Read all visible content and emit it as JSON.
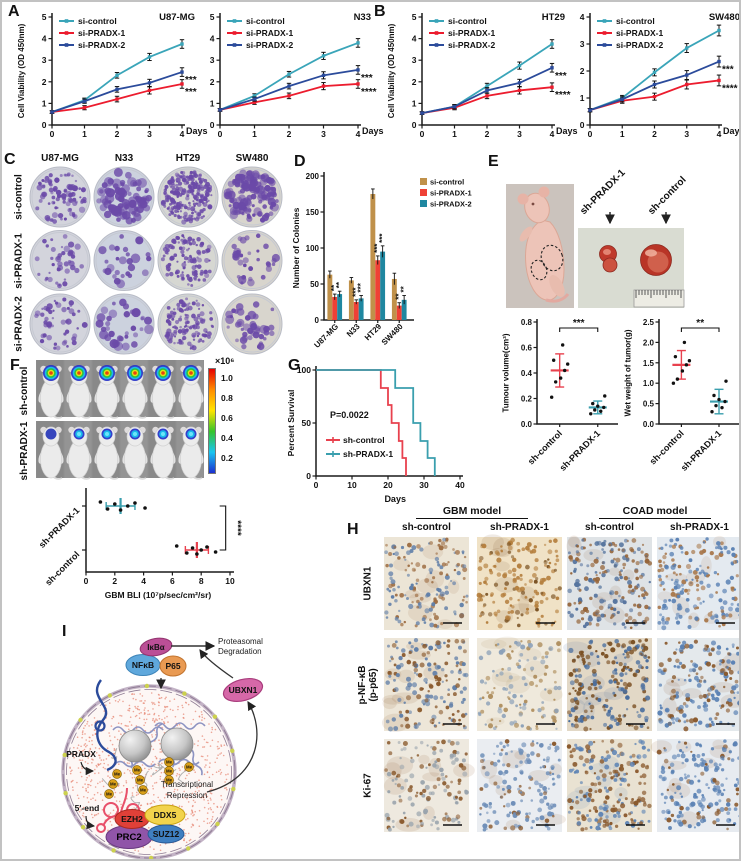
{
  "panel_labels": {
    "A": "A",
    "B": "B",
    "C": "C",
    "D": "D",
    "E": "E",
    "F": "F",
    "G": "G",
    "H": "H",
    "I": "I"
  },
  "colors": {
    "si_control": "#3aa5b9",
    "si_pradx1": "#ec1c2e",
    "si_pradx2": "#2b4b9b",
    "bar_control": "#c0914a",
    "bar_pradx1": "#ef4136",
    "bar_pradx2": "#1f87a0",
    "sh_control": "#e8414e",
    "sh_pradx1": "#3a9fae",
    "colony": "#6b4aa8",
    "point": "#111111"
  },
  "panelC": {
    "columns": [
      "U87-MG",
      "N33",
      "HT29",
      "SW480"
    ],
    "rows": [
      "si-control",
      "si-PRADX-1",
      "si-PRADX-2"
    ],
    "counts": [
      [
        90,
        75,
        230,
        120
      ],
      [
        40,
        26,
        110,
        34
      ],
      [
        48,
        34,
        130,
        42
      ]
    ],
    "sizes": [
      [
        1.0,
        3.2
      ],
      [
        1.8,
        5.0
      ],
      [
        1.0,
        2.6
      ],
      [
        1.5,
        4.5
      ]
    ],
    "dish_bg": [
      "#d3d4dc",
      "#ccd2de",
      "#d6d7d2",
      "#d8d5cd"
    ]
  },
  "panelE": {
    "tumor_labels": [
      "sh-PRADX-1",
      "sh-control"
    ]
  },
  "panelF": {
    "row_labels": [
      "sh-control",
      "sh-PRADX-1"
    ],
    "scale_title": "×10⁶",
    "scale_ticks": [
      "1.0",
      "0.8",
      "0.6",
      "0.4",
      "0.2"
    ]
  },
  "panelH": {
    "group_headers": [
      "GBM model",
      "COAD model"
    ],
    "col_labels": [
      "sh-control",
      "sh-PRADX-1",
      "sh-control",
      "sh-PRADX-1"
    ],
    "row_labels": [
      [
        "UBXN1"
      ],
      [
        "p-NF-κB",
        "(p-p65)"
      ],
      [
        "Ki-67"
      ]
    ],
    "tiles": [
      {
        "row": 0,
        "col": 0,
        "bg": "#ece5d6",
        "c1": "#5f7ea8",
        "c2": "#9c6b40",
        "ratio": 0.5,
        "n": 150
      },
      {
        "row": 0,
        "col": 1,
        "bg": "#f0e2c6",
        "c1": "#b5803f",
        "c2": "#7d5526",
        "ratio": 0.7,
        "n": 160
      },
      {
        "row": 0,
        "col": 2,
        "bg": "#dfe3e6",
        "c1": "#56749e",
        "c2": "#96653a",
        "ratio": 0.5,
        "n": 200
      },
      {
        "row": 0,
        "col": 3,
        "bg": "#e4eaf0",
        "c1": "#5b82b4",
        "c2": "#a8774a",
        "ratio": 0.6,
        "n": 180
      },
      {
        "row": 1,
        "col": 0,
        "bg": "#ede6d8",
        "c1": "#5f7ea8",
        "c2": "#8a5a2e",
        "ratio": 0.55,
        "n": 170
      },
      {
        "row": 1,
        "col": 1,
        "bg": "#efe9dc",
        "c1": "#8ba0b8",
        "c2": "#b09060",
        "ratio": 0.5,
        "n": 120
      },
      {
        "row": 1,
        "col": 2,
        "bg": "#e2d8c6",
        "c1": "#7a4f22",
        "c2": "#4a6e9e",
        "ratio": 0.55,
        "n": 210
      },
      {
        "row": 1,
        "col": 3,
        "bg": "#e4e9ec",
        "c1": "#5b82b4",
        "c2": "#8a5a2e",
        "ratio": 0.55,
        "n": 180
      },
      {
        "row": 2,
        "col": 0,
        "bg": "#eee9df",
        "c1": "#9aa4ad",
        "c2": "#8a5a2e",
        "ratio": 0.6,
        "n": 130
      },
      {
        "row": 2,
        "col": 1,
        "bg": "#eaedf1",
        "c1": "#6f8fb8",
        "c2": "#8a5a2e",
        "ratio": 0.75,
        "n": 150
      },
      {
        "row": 2,
        "col": 2,
        "bg": "#e9e2d2",
        "c1": "#8a5a2e",
        "c2": "#5b82b4",
        "ratio": 0.6,
        "n": 200
      },
      {
        "row": 2,
        "col": 3,
        "bg": "#e7ebf0",
        "c1": "#5b82b4",
        "c2": "#8a5a2e",
        "ratio": 0.8,
        "n": 170
      }
    ]
  },
  "panelI": {
    "labels": {
      "ikba": "IκBα",
      "nfkb": "NFκB",
      "p65": "P65",
      "prot_deg_1": "Proteasomal",
      "prot_deg_2": "Degradation",
      "ubxn1": "UBXN1",
      "pradx": "PRADX",
      "me": "Me",
      "tr_1": "Transcriptional",
      "tr_2": "Repression",
      "five_end": "5'-end",
      "ezh2": "EZH2",
      "ddx5": "DDX5",
      "prc2": "PRC2",
      "suz12": "SUZ12"
    }
  },
  "chart_data": [
    {
      "id": "u87",
      "type": "line",
      "title": "U87-MG",
      "ylabel": "Cell Viability (OD 450nm)",
      "xlabel": "Days",
      "x": [
        0,
        1,
        2,
        3,
        4
      ],
      "ylim": [
        0,
        5
      ],
      "yticks": [
        0,
        1,
        2,
        3,
        4,
        5
      ],
      "series": [
        {
          "name": "si-control",
          "color": "si_control",
          "values": [
            0.6,
            1.15,
            2.3,
            3.15,
            3.75
          ]
        },
        {
          "name": "si-PRADX-1",
          "color": "si_pradx1",
          "values": [
            0.6,
            0.8,
            1.2,
            1.6,
            1.9
          ],
          "sig": "***"
        },
        {
          "name": "si-PRADX-2",
          "color": "si_pradx2",
          "values": [
            0.6,
            1.1,
            1.65,
            1.95,
            2.45
          ],
          "sig": "***"
        }
      ]
    },
    {
      "id": "n33",
      "type": "line",
      "title": "N33",
      "xlabel": "Days",
      "x": [
        0,
        1,
        2,
        3,
        4
      ],
      "ylim": [
        0,
        5
      ],
      "yticks": [
        0,
        1,
        2,
        3,
        4,
        5
      ],
      "series": [
        {
          "name": "si-control",
          "color": "si_control",
          "values": [
            0.7,
            1.35,
            2.35,
            3.2,
            3.8
          ]
        },
        {
          "name": "si-PRADX-1",
          "color": "si_pradx1",
          "values": [
            0.7,
            1.05,
            1.35,
            1.8,
            1.9
          ],
          "sig": "****"
        },
        {
          "name": "si-PRADX-2",
          "color": "si_pradx2",
          "values": [
            0.7,
            1.2,
            1.8,
            2.3,
            2.55
          ],
          "sig": "***"
        }
      ]
    },
    {
      "id": "ht29",
      "type": "line",
      "title": "HT29",
      "ylabel": "Cell Viability (OD 450nm)",
      "xlabel": "Days",
      "x": [
        0,
        1,
        2,
        3,
        4
      ],
      "ylim": [
        0,
        5
      ],
      "yticks": [
        0,
        1,
        2,
        3,
        4,
        5
      ],
      "series": [
        {
          "name": "si-control",
          "color": "si_control",
          "values": [
            0.55,
            0.85,
            1.8,
            2.75,
            3.75
          ]
        },
        {
          "name": "si-PRADX-1",
          "color": "si_pradx1",
          "values": [
            0.55,
            0.8,
            1.35,
            1.6,
            1.75
          ],
          "sig": "****"
        },
        {
          "name": "si-PRADX-2",
          "color": "si_pradx2",
          "values": [
            0.55,
            0.85,
            1.6,
            1.95,
            2.65
          ],
          "sig": "***"
        }
      ]
    },
    {
      "id": "sw480",
      "type": "line",
      "title": "SW480",
      "xlabel": "Days",
      "x": [
        0,
        1,
        2,
        3,
        4
      ],
      "ylim": [
        0,
        4
      ],
      "yticks": [
        0,
        1,
        2,
        3,
        4
      ],
      "series": [
        {
          "name": "si-control",
          "color": "si_control",
          "values": [
            0.55,
            1.0,
            1.95,
            2.85,
            3.5
          ]
        },
        {
          "name": "si-PRADX-1",
          "color": "si_pradx1",
          "values": [
            0.55,
            0.9,
            1.05,
            1.5,
            1.65
          ],
          "sig": "****"
        },
        {
          "name": "si-PRADX-2",
          "color": "si_pradx2",
          "values": [
            0.55,
            0.95,
            1.5,
            1.85,
            2.35
          ],
          "sig": "***"
        }
      ]
    },
    {
      "id": "colonies",
      "type": "bar",
      "ylabel": "Number of Colonies",
      "categories": [
        "U87-MG",
        "N33",
        "HT29",
        "SW480"
      ],
      "ylim": [
        0,
        200
      ],
      "yticks": [
        0,
        50,
        100,
        150,
        200
      ],
      "series": [
        {
          "name": "si-control",
          "color": "bar_control",
          "values": [
            63,
            55,
            175,
            57
          ],
          "err": [
            5,
            4,
            7,
            8
          ]
        },
        {
          "name": "si-PRADX-1",
          "color": "bar_pradx1",
          "values": [
            32,
            25,
            83,
            20
          ],
          "err": [
            4,
            3,
            6,
            4
          ],
          "sig": [
            "**",
            "***",
            "***",
            "**"
          ]
        },
        {
          "name": "si-PRADX-2",
          "color": "bar_pradx2",
          "values": [
            36,
            30,
            95,
            28
          ],
          "err": [
            4,
            4,
            8,
            6
          ],
          "sig": [
            "**",
            "***",
            "***",
            "**"
          ]
        }
      ]
    },
    {
      "id": "tumour_volume",
      "type": "scatter",
      "ylabel": "Tumour volume(cm³)",
      "ylim": [
        0,
        0.8
      ],
      "yticks": [
        "0.0",
        "0.2",
        "0.4",
        "0.6",
        "0.8"
      ],
      "sig": "***",
      "groups": [
        {
          "name": "sh-control",
          "color": "sh_control",
          "points": [
            0.21,
            0.33,
            0.36,
            0.42,
            0.47,
            0.5,
            0.62
          ],
          "mean": 0.42,
          "sd": 0.13
        },
        {
          "name": "sh-PRADX-1",
          "color": "sh_pradx1",
          "points": [
            0.08,
            0.1,
            0.11,
            0.13,
            0.14,
            0.16,
            0.22
          ],
          "mean": 0.13,
          "sd": 0.05
        }
      ]
    },
    {
      "id": "wet_weight",
      "type": "scatter",
      "ylabel": "Wet weight of tumor(g)",
      "ylim": [
        0,
        2.5
      ],
      "yticks": [
        "0.0",
        "0.5",
        "1.0",
        "1.5",
        "2.0",
        "2.5"
      ],
      "sig": "**",
      "groups": [
        {
          "name": "sh-control",
          "color": "sh_control",
          "points": [
            1.0,
            1.1,
            1.3,
            1.45,
            1.55,
            1.65,
            2.0
          ],
          "mean": 1.45,
          "sd": 0.35
        },
        {
          "name": "sh-PRADX-1",
          "color": "sh_pradx1",
          "points": [
            0.3,
            0.4,
            0.45,
            0.55,
            0.6,
            0.7,
            1.05
          ],
          "mean": 0.55,
          "sd": 0.3
        }
      ]
    },
    {
      "id": "gbm_bli",
      "type": "hscatter",
      "xlabel": "GBM BLI (10⁷p/sec/cm²/sr)",
      "xlim": [
        0,
        10
      ],
      "xticks": [
        0,
        2,
        4,
        6,
        8,
        10
      ],
      "sig": "****",
      "groups": [
        {
          "name": "sh-PRADX-1",
          "color": "sh_pradx1",
          "points": [
            1.0,
            1.5,
            2.0,
            2.4,
            2.9,
            3.4,
            4.1
          ],
          "mean": 2.4,
          "sd": 1.0
        },
        {
          "name": "sh-control",
          "color": "sh_control",
          "points": [
            6.3,
            7.0,
            7.4,
            7.7,
            8.0,
            8.4,
            9.0
          ],
          "mean": 7.7,
          "sd": 0.8
        }
      ]
    },
    {
      "id": "survival",
      "type": "survival",
      "ylabel": "Percent Survival",
      "xlabel": "Days",
      "xlim": [
        0,
        40
      ],
      "xticks": [
        0,
        10,
        20,
        30,
        40
      ],
      "yticks": [
        0,
        50,
        100
      ],
      "p_label": "P=0.0022",
      "series": [
        {
          "name": "sh-control",
          "color": "sh_control",
          "steps": [
            [
              0,
              100
            ],
            [
              18,
              100
            ],
            [
              18,
              83
            ],
            [
              20,
              83
            ],
            [
              20,
              67
            ],
            [
              21,
              67
            ],
            [
              21,
              50
            ],
            [
              23,
              50
            ],
            [
              23,
              33
            ],
            [
              24,
              33
            ],
            [
              24,
              17
            ],
            [
              25,
              17
            ],
            [
              25,
              0
            ]
          ]
        },
        {
          "name": "sh-PRADX-1",
          "color": "sh_pradx1",
          "steps": [
            [
              0,
              100
            ],
            [
              22,
              100
            ],
            [
              22,
              83
            ],
            [
              27,
              83
            ],
            [
              27,
              50
            ],
            [
              29,
              50
            ],
            [
              29,
              33
            ],
            [
              31,
              33
            ],
            [
              31,
              17
            ],
            [
              33,
              17
            ],
            [
              33,
              0
            ]
          ]
        }
      ]
    }
  ]
}
